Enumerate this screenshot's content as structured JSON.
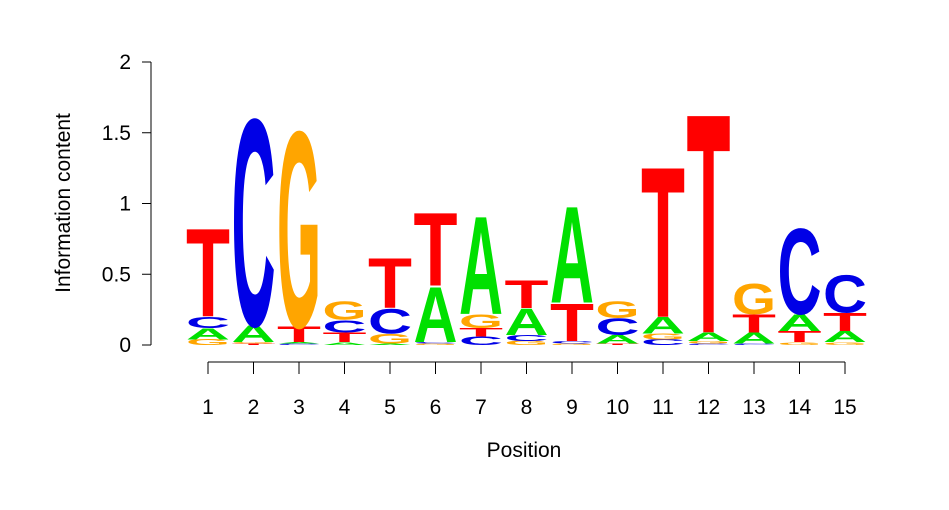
{
  "chart_data": {
    "type": "sequence-logo",
    "xlabel": "Position",
    "ylabel": "Information content",
    "ylim": [
      0,
      2
    ],
    "yticks": [
      "0",
      "0.5",
      "1",
      "1.5",
      "2"
    ],
    "ytick_values": [
      0,
      0.5,
      1,
      1.5,
      2
    ],
    "positions": [
      "1",
      "2",
      "3",
      "4",
      "5",
      "6",
      "7",
      "8",
      "9",
      "10",
      "11",
      "12",
      "13",
      "14",
      "15"
    ],
    "colors": {
      "A": "#00e000",
      "C": "#0000e6",
      "G": "#ffa500",
      "T": "#ff0000"
    },
    "stacks": [
      [
        {
          "letter": "G",
          "height": 0.04
        },
        {
          "letter": "A",
          "height": 0.08
        },
        {
          "letter": "C",
          "height": 0.08
        },
        {
          "letter": "T",
          "height": 0.64
        }
      ],
      [
        {
          "letter": "T",
          "height": 0.01
        },
        {
          "letter": "G",
          "height": 0.01
        },
        {
          "letter": "A",
          "height": 0.12
        },
        {
          "letter": "C",
          "height": 1.5
        }
      ],
      [
        {
          "letter": "C",
          "height": 0.01
        },
        {
          "letter": "A",
          "height": 0.01
        },
        {
          "letter": "T",
          "height": 0.11
        },
        {
          "letter": "G",
          "height": 1.42
        }
      ],
      [
        {
          "letter": "A",
          "height": 0.02
        },
        {
          "letter": "T",
          "height": 0.07
        },
        {
          "letter": "C",
          "height": 0.09
        },
        {
          "letter": "G",
          "height": 0.13
        }
      ],
      [
        {
          "letter": "A",
          "height": 0.01
        },
        {
          "letter": "G",
          "height": 0.07
        },
        {
          "letter": "C",
          "height": 0.18
        },
        {
          "letter": "T",
          "height": 0.36
        }
      ],
      [
        {
          "letter": "G",
          "height": 0.01
        },
        {
          "letter": "C",
          "height": 0.01
        },
        {
          "letter": "A",
          "height": 0.4
        },
        {
          "letter": "T",
          "height": 0.53
        }
      ],
      [
        {
          "letter": "C",
          "height": 0.06
        },
        {
          "letter": "T",
          "height": 0.06
        },
        {
          "letter": "G",
          "height": 0.1
        },
        {
          "letter": "A",
          "height": 0.71
        }
      ],
      [
        {
          "letter": "G",
          "height": 0.03
        },
        {
          "letter": "C",
          "height": 0.04
        },
        {
          "letter": "A",
          "height": 0.19
        },
        {
          "letter": "T",
          "height": 0.2
        }
      ],
      [
        {
          "letter": "G",
          "height": 0.01
        },
        {
          "letter": "C",
          "height": 0.02
        },
        {
          "letter": "T",
          "height": 0.27
        },
        {
          "letter": "A",
          "height": 0.7
        }
      ],
      [
        {
          "letter": "T",
          "height": 0.01
        },
        {
          "letter": "A",
          "height": 0.06
        },
        {
          "letter": "C",
          "height": 0.12
        },
        {
          "letter": "G",
          "height": 0.12
        }
      ],
      [
        {
          "letter": "C",
          "height": 0.04
        },
        {
          "letter": "G",
          "height": 0.04
        },
        {
          "letter": "A",
          "height": 0.12
        },
        {
          "letter": "T",
          "height": 1.09
        }
      ],
      [
        {
          "letter": "C",
          "height": 0.01
        },
        {
          "letter": "G",
          "height": 0.02
        },
        {
          "letter": "A",
          "height": 0.06
        },
        {
          "letter": "T",
          "height": 1.59
        }
      ],
      [
        {
          "letter": "C",
          "height": 0.01
        },
        {
          "letter": "A",
          "height": 0.08
        },
        {
          "letter": "T",
          "height": 0.13
        },
        {
          "letter": "G",
          "height": 0.22
        }
      ],
      [
        {
          "letter": "G",
          "height": 0.02
        },
        {
          "letter": "T",
          "height": 0.08
        },
        {
          "letter": "A",
          "height": 0.12
        },
        {
          "letter": "C",
          "height": 0.62
        }
      ],
      [
        {
          "letter": "G",
          "height": 0.02
        },
        {
          "letter": "A",
          "height": 0.08
        },
        {
          "letter": "T",
          "height": 0.13
        },
        {
          "letter": "C",
          "height": 0.27
        }
      ]
    ]
  }
}
